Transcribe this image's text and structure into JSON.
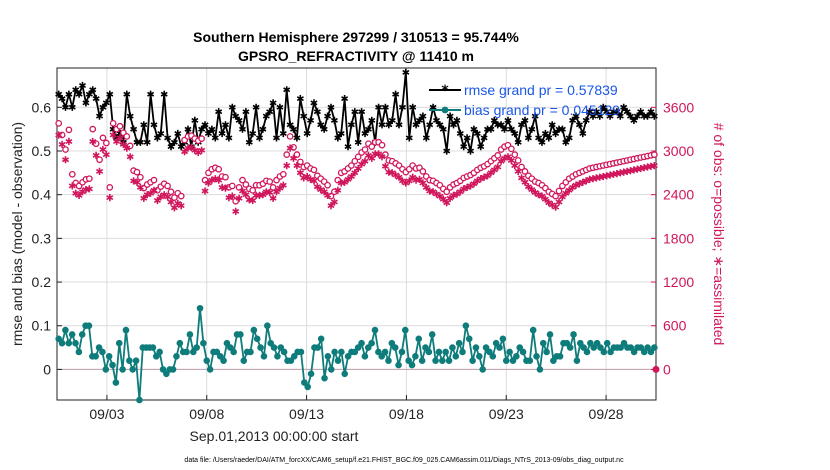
{
  "chart_data": {
    "type": "line",
    "title": "Southern Hemisphere 297299 / 310513 = 95.744%",
    "subtitle": "GPSRO_REFRACTIVITY @ 11410 m",
    "xlabel": "Sep.01,2013 00:00:00 start",
    "ylabel": "rmse and bias (model - observation)",
    "ylabel_right": "# of obs: o=possible; ∗=assimilated",
    "footnote": "data file: /Users/raeder/DAI/ATM_forcXX/CAM6_setup/f.e21.FHIST_BGC.f09_025.CAM6assim.011/Diags_NTrS_2013-09/obs_diag_output.nc",
    "xlim": [
      0.5,
      30.5
    ],
    "ylim": [
      -0.07,
      0.69
    ],
    "ylim_right": [
      -420,
      4140
    ],
    "grid": true,
    "legend_position": "top-right",
    "xticks": [
      {
        "value": 3,
        "label": "09/03"
      },
      {
        "value": 8,
        "label": "09/08"
      },
      {
        "value": 13,
        "label": "09/13"
      },
      {
        "value": 18,
        "label": "09/18"
      },
      {
        "value": 23,
        "label": "09/23"
      },
      {
        "value": 28,
        "label": "09/28"
      }
    ],
    "yticks": [
      {
        "value": 0,
        "label": "0"
      },
      {
        "value": 0.1,
        "label": "0.1"
      },
      {
        "value": 0.2,
        "label": "0.2"
      },
      {
        "value": 0.3,
        "label": "0.3"
      },
      {
        "value": 0.4,
        "label": "0.4"
      },
      {
        "value": 0.5,
        "label": "0.5"
      },
      {
        "value": 0.6,
        "label": "0.6"
      }
    ],
    "yticks_right": [
      {
        "value": 0,
        "label": "0"
      },
      {
        "value": 600,
        "label": "600"
      },
      {
        "value": 1200,
        "label": "1200"
      },
      {
        "value": 1800,
        "label": "1800"
      },
      {
        "value": 2400,
        "label": "2400"
      },
      {
        "value": 3000,
        "label": "3000"
      },
      {
        "value": 3600,
        "label": "3600"
      }
    ],
    "series": [
      {
        "name": "rmse",
        "legend": "rmse grand pr = 0.57839",
        "color": "#000000",
        "axis": "left",
        "marker": "*",
        "values": [
          0.63,
          0.62,
          0.6,
          0.63,
          0.6,
          0.64,
          0.63,
          0.65,
          0.61,
          0.63,
          0.64,
          0.62,
          0.58,
          0.6,
          0.61,
          0.63,
          0.55,
          0.53,
          0.54,
          0.52,
          0.63,
          0.58,
          0.55,
          0.52,
          0.52,
          0.56,
          0.52,
          0.63,
          0.56,
          0.53,
          0.54,
          0.63,
          0.53,
          0.51,
          0.52,
          0.54,
          0.51,
          0.52,
          0.55,
          0.51,
          0.57,
          0.52,
          0.55,
          0.56,
          0.54,
          0.55,
          0.53,
          0.59,
          0.54,
          0.56,
          0.53,
          0.6,
          0.58,
          0.57,
          0.55,
          0.59,
          0.52,
          0.54,
          0.6,
          0.53,
          0.55,
          0.58,
          0.59,
          0.61,
          0.53,
          0.6,
          0.54,
          0.64,
          0.56,
          0.55,
          0.53,
          0.62,
          0.58,
          0.54,
          0.57,
          0.61,
          0.59,
          0.56,
          0.55,
          0.58,
          0.6,
          0.57,
          0.53,
          0.54,
          0.62,
          0.51,
          0.56,
          0.59,
          0.52,
          0.59,
          0.54,
          0.55,
          0.57,
          0.52,
          0.6,
          0.56,
          0.6,
          0.56,
          0.57,
          0.63,
          0.56,
          0.6,
          0.68,
          0.53,
          0.6,
          0.56,
          0.57,
          0.58,
          0.53,
          0.56,
          0.6,
          0.57,
          0.56,
          0.55,
          0.5,
          0.58,
          0.56,
          0.57,
          0.54,
          0.51,
          0.53,
          0.5,
          0.55,
          0.54,
          0.51,
          0.53,
          0.55,
          0.55,
          0.57,
          0.56,
          0.56,
          0.55,
          0.57,
          0.55,
          0.54,
          0.52,
          0.56,
          0.57,
          0.53,
          0.55,
          0.58,
          0.53,
          0.52,
          0.54,
          0.53,
          0.56,
          0.54,
          0.55,
          0.55,
          0.52,
          0.53,
          0.57,
          0.58,
          0.56,
          0.54,
          0.57,
          0.59,
          0.58,
          0.59,
          0.58,
          0.6,
          0.59,
          0.58,
          0.59,
          0.59,
          0.58,
          0.6,
          0.59,
          0.58,
          0.57,
          0.58,
          0.59,
          0.58,
          0.58,
          0.59,
          0.58
        ]
      },
      {
        "name": "bias",
        "legend": "bias grand pr = 0.045129",
        "color": "#0e7c7b",
        "axis": "left",
        "marker": "o",
        "values": [
          0.07,
          0.06,
          0.09,
          0.06,
          0.08,
          0.06,
          0.04,
          0.08,
          0.1,
          0.1,
          0.03,
          0.03,
          0.05,
          0.04,
          0.0,
          0.03,
          0.01,
          -0.03,
          0.06,
          0.0,
          0.09,
          0.02,
          0.0,
          0.02,
          -0.07,
          0.05,
          0.05,
          0.05,
          0.05,
          0.03,
          0.04,
          0.0,
          -0.01,
          0.0,
          0.0,
          0.03,
          0.06,
          0.04,
          0.04,
          0.08,
          0.04,
          0.05,
          0.14,
          0.06,
          0.02,
          0.0,
          0.04,
          0.04,
          0.03,
          0.02,
          0.06,
          0.05,
          0.04,
          0.08,
          0.08,
          0.02,
          0.04,
          0.04,
          0.09,
          0.07,
          0.05,
          0.03,
          0.1,
          0.06,
          0.05,
          0.03,
          0.05,
          0.04,
          0.02,
          0.02,
          0.03,
          0.04,
          0.04,
          -0.03,
          -0.04,
          -0.01,
          0.05,
          0.05,
          0.07,
          -0.02,
          0.03,
          0.0,
          0.04,
          0.02,
          0.04,
          -0.01,
          0.03,
          0.04,
          0.04,
          0.05,
          0.06,
          0.03,
          0.05,
          0.06,
          0.09,
          0.04,
          0.03,
          0.04,
          0.02,
          0.06,
          0.05,
          0.01,
          0.04,
          0.09,
          0.02,
          0.01,
          0.03,
          0.07,
          0.02,
          0.05,
          0.04,
          0.08,
          0.02,
          0.04,
          0.02,
          0.04,
          0.02,
          0.05,
          0.03,
          0.06,
          0.04,
          0.1,
          0.07,
          0.02,
          0.05,
          0.03,
          0.0,
          0.05,
          0.04,
          0.03,
          0.06,
          0.05,
          0.07,
          0.02,
          0.04,
          0.02,
          0.03,
          0.05,
          0.04,
          0.02,
          0.02,
          0.09,
          0.03,
          0.0,
          0.06,
          0.04,
          0.08,
          0.02,
          0.03,
          0.03,
          0.06,
          0.06,
          0.05,
          0.08,
          0.02,
          0.06,
          0.05,
          0.04,
          0.06,
          0.05,
          0.06,
          0.05,
          0.04,
          0.06,
          0.04,
          0.05,
          0.05,
          0.05,
          0.06,
          0.05,
          0.05,
          0.04,
          0.05,
          0.05,
          0.04,
          0.05,
          0.04,
          0.05
        ]
      },
      {
        "name": "possible",
        "color": "#d0165c",
        "axis": "right",
        "marker": "o",
        "values": [
          3380,
          3220,
          3020,
          3290,
          2680,
          2560,
          2520,
          2570,
          2610,
          2620,
          3300,
          3100,
          2880,
          3180,
          3110,
          2500,
          3380,
          3300,
          3340,
          3250,
          3200,
          3070,
          2730,
          2710,
          2640,
          2490,
          2540,
          2570,
          2600,
          2460,
          2510,
          2550,
          2520,
          2440,
          2360,
          2420,
          2380,
          3150,
          3200,
          3210,
          3170,
          3140,
          3170,
          2600,
          2700,
          2750,
          2770,
          2750,
          2650,
          2640,
          2500,
          2520,
          2310,
          2500,
          2600,
          2540,
          2480,
          2460,
          2530,
          2530,
          2550,
          2590,
          2580,
          2500,
          2600,
          2650,
          2680,
          2950,
          3200,
          3050,
          2950,
          2850,
          2780,
          2800,
          2760,
          2740,
          2660,
          2620,
          2580,
          2530,
          2380,
          2440,
          2600,
          2700,
          2720,
          2760,
          2800,
          2860,
          2920,
          2980,
          3020,
          3100,
          3060,
          3120,
          3120,
          3080,
          2950,
          2870,
          2860,
          2830,
          2800,
          2750,
          2710,
          2750,
          2800,
          2760,
          2770,
          2720,
          2650,
          2600,
          2590,
          2560,
          2530,
          2480,
          2440,
          2500,
          2540,
          2560,
          2590,
          2630,
          2650,
          2670,
          2700,
          2740,
          2770,
          2790,
          2820,
          2860,
          2900,
          2940,
          3020,
          3060,
          3080,
          3030,
          2950,
          2870,
          2780,
          2720,
          2660,
          2620,
          2580,
          2560,
          2530,
          2490,
          2440,
          2410,
          2380,
          2450,
          2520,
          2570,
          2620,
          2650,
          2680,
          2700,
          2720,
          2740,
          2760,
          2770,
          2780,
          2790,
          2800,
          2810,
          2820,
          2830,
          2840,
          2850,
          2860,
          2870,
          2880,
          2890,
          2900,
          2910,
          2920,
          2930,
          2940,
          2950
        ]
      },
      {
        "name": "assimilated",
        "color": "#d0165c",
        "axis": "right",
        "marker": "*",
        "values": [
          3220,
          3090,
          2880,
          3130,
          2520,
          2420,
          2390,
          2440,
          2470,
          2480,
          3130,
          2940,
          2720,
          3020,
          2950,
          2360,
          3220,
          3130,
          3180,
          3090,
          3040,
          2920,
          2590,
          2570,
          2500,
          2350,
          2400,
          2420,
          2460,
          2320,
          2370,
          2400,
          2370,
          2300,
          2220,
          2280,
          2250,
          2990,
          3040,
          3050,
          3010,
          2980,
          3010,
          2450,
          2560,
          2600,
          2620,
          2600,
          2500,
          2490,
          2360,
          2380,
          2170,
          2350,
          2450,
          2400,
          2330,
          2320,
          2390,
          2390,
          2400,
          2440,
          2430,
          2350,
          2440,
          2490,
          2530,
          2800,
          3040,
          2900,
          2800,
          2700,
          2630,
          2650,
          2610,
          2590,
          2510,
          2470,
          2440,
          2390,
          2250,
          2300,
          2460,
          2560,
          2570,
          2610,
          2650,
          2700,
          2760,
          2820,
          2860,
          2940,
          2900,
          2960,
          2960,
          2920,
          2790,
          2710,
          2700,
          2670,
          2640,
          2590,
          2560,
          2590,
          2640,
          2600,
          2610,
          2560,
          2500,
          2450,
          2440,
          2410,
          2380,
          2340,
          2290,
          2350,
          2390,
          2410,
          2440,
          2480,
          2500,
          2520,
          2550,
          2590,
          2620,
          2640,
          2660,
          2700,
          2740,
          2780,
          2860,
          2900,
          2920,
          2870,
          2800,
          2720,
          2630,
          2570,
          2510,
          2470,
          2430,
          2400,
          2380,
          2340,
          2290,
          2260,
          2230,
          2300,
          2370,
          2420,
          2460,
          2500,
          2530,
          2550,
          2570,
          2590,
          2610,
          2620,
          2630,
          2640,
          2650,
          2660,
          2670,
          2680,
          2690,
          2700,
          2710,
          2720,
          2730,
          2740,
          2750,
          2760,
          2770,
          2780,
          2790,
          2800
        ]
      }
    ]
  }
}
